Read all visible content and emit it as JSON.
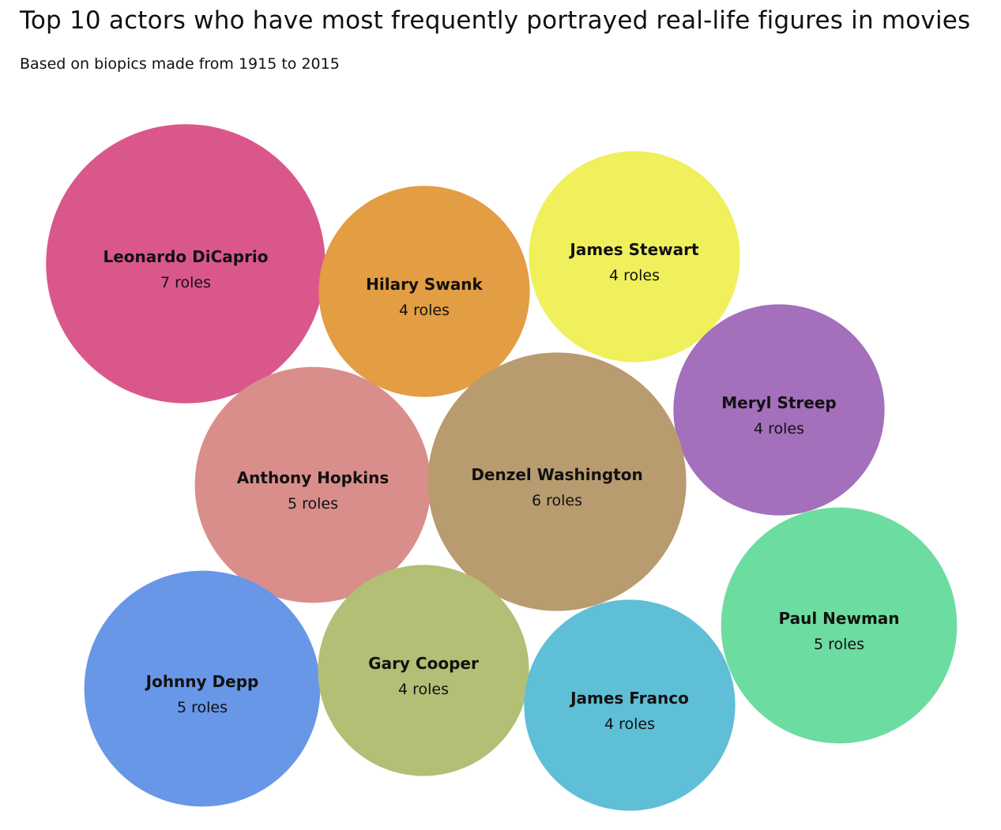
{
  "chart_data": {
    "type": "bubble",
    "title": "Top 10 actors who have most frequently portrayed real-life figures in movies",
    "subtitle": "Based on biopics made from 1915 to 2015",
    "value_suffix": " roles",
    "bubbles": [
      {
        "name": "Leonardo DiCaprio",
        "value": 7,
        "value_label": "7 roles",
        "color": "#da578c"
      },
      {
        "name": "Hilary Swank",
        "value": 4,
        "value_label": "4 roles",
        "color": "#e39d43"
      },
      {
        "name": "James Stewart",
        "value": 4,
        "value_label": "4 roles",
        "color": "#eff05b"
      },
      {
        "name": "Meryl Streep",
        "value": 4,
        "value_label": "4 roles",
        "color": "#a46fbb"
      },
      {
        "name": "Anthony Hopkins",
        "value": 5,
        "value_label": "5 roles",
        "color": "#d98e8c"
      },
      {
        "name": "Denzel Washington",
        "value": 6,
        "value_label": "6 roles",
        "color": "#b99b70"
      },
      {
        "name": "Paul Newman",
        "value": 5,
        "value_label": "5 roles",
        "color": "#6ddca0"
      },
      {
        "name": "Johnny Depp",
        "value": 5,
        "value_label": "5 roles",
        "color": "#6897e8"
      },
      {
        "name": "Gary Cooper",
        "value": 4,
        "value_label": "4 roles",
        "color": "#b2bf74"
      },
      {
        "name": "James Franco",
        "value": 4,
        "value_label": "4 roles",
        "color": "#5ebfd6"
      }
    ]
  }
}
